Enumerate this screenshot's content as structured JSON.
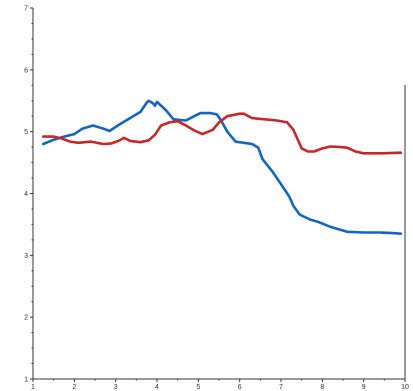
{
  "chart_data": {
    "type": "line",
    "title": "",
    "xlabel": "",
    "ylabel": "",
    "xlim": [
      1,
      10
    ],
    "ylim": [
      1,
      7
    ],
    "grid": false,
    "legend": "none",
    "x_ticks": [
      "1",
      "2",
      "3",
      "4",
      "5",
      "6",
      "7",
      "8",
      "9",
      "10"
    ],
    "y_ticks": [
      "1",
      "2",
      "3",
      "4",
      "5",
      "6",
      "7"
    ],
    "series": [
      {
        "color": "#1565c0",
        "points": [
          [
            1.25,
            4.8
          ],
          [
            1.5,
            4.87
          ],
          [
            1.75,
            4.92
          ],
          [
            2.0,
            4.96
          ],
          [
            2.2,
            5.05
          ],
          [
            2.45,
            5.1
          ],
          [
            2.7,
            5.05
          ],
          [
            2.85,
            5.01
          ],
          [
            3.1,
            5.12
          ],
          [
            3.35,
            5.22
          ],
          [
            3.6,
            5.32
          ],
          [
            3.75,
            5.47
          ],
          [
            3.8,
            5.5
          ],
          [
            3.9,
            5.46
          ],
          [
            3.95,
            5.42
          ],
          [
            4.0,
            5.48
          ],
          [
            4.1,
            5.42
          ],
          [
            4.2,
            5.36
          ],
          [
            4.4,
            5.2
          ],
          [
            4.7,
            5.18
          ],
          [
            4.9,
            5.25
          ],
          [
            5.05,
            5.3
          ],
          [
            5.3,
            5.3
          ],
          [
            5.45,
            5.28
          ],
          [
            5.55,
            5.18
          ],
          [
            5.7,
            5.0
          ],
          [
            5.9,
            4.84
          ],
          [
            6.1,
            4.82
          ],
          [
            6.3,
            4.8
          ],
          [
            6.45,
            4.74
          ],
          [
            6.55,
            4.56
          ],
          [
            6.8,
            4.35
          ],
          [
            7.0,
            4.15
          ],
          [
            7.2,
            3.95
          ],
          [
            7.3,
            3.8
          ],
          [
            7.45,
            3.66
          ],
          [
            7.7,
            3.58
          ],
          [
            7.9,
            3.54
          ],
          [
            8.2,
            3.46
          ],
          [
            8.6,
            3.38
          ],
          [
            9.0,
            3.37
          ],
          [
            9.4,
            3.37
          ],
          [
            9.7,
            3.36
          ],
          [
            9.9,
            3.35
          ]
        ]
      },
      {
        "color": "#c62828",
        "points": [
          [
            1.25,
            4.92
          ],
          [
            1.5,
            4.92
          ],
          [
            1.7,
            4.89
          ],
          [
            1.9,
            4.84
          ],
          [
            2.1,
            4.82
          ],
          [
            2.4,
            4.84
          ],
          [
            2.7,
            4.8
          ],
          [
            2.9,
            4.81
          ],
          [
            3.1,
            4.86
          ],
          [
            3.2,
            4.9
          ],
          [
            3.35,
            4.85
          ],
          [
            3.6,
            4.83
          ],
          [
            3.8,
            4.86
          ],
          [
            3.95,
            4.95
          ],
          [
            4.1,
            5.1
          ],
          [
            4.3,
            5.15
          ],
          [
            4.5,
            5.17
          ],
          [
            4.7,
            5.1
          ],
          [
            4.9,
            5.02
          ],
          [
            5.1,
            4.96
          ],
          [
            5.35,
            5.03
          ],
          [
            5.5,
            5.15
          ],
          [
            5.7,
            5.25
          ],
          [
            6.0,
            5.29
          ],
          [
            6.1,
            5.29
          ],
          [
            6.3,
            5.22
          ],
          [
            6.6,
            5.2
          ],
          [
            6.9,
            5.18
          ],
          [
            7.15,
            5.15
          ],
          [
            7.3,
            5.03
          ],
          [
            7.5,
            4.73
          ],
          [
            7.65,
            4.68
          ],
          [
            7.8,
            4.68
          ],
          [
            8.0,
            4.73
          ],
          [
            8.2,
            4.76
          ],
          [
            8.45,
            4.75
          ],
          [
            8.6,
            4.74
          ],
          [
            8.8,
            4.68
          ],
          [
            9.0,
            4.65
          ],
          [
            9.4,
            4.65
          ],
          [
            9.9,
            4.66
          ]
        ]
      }
    ]
  }
}
